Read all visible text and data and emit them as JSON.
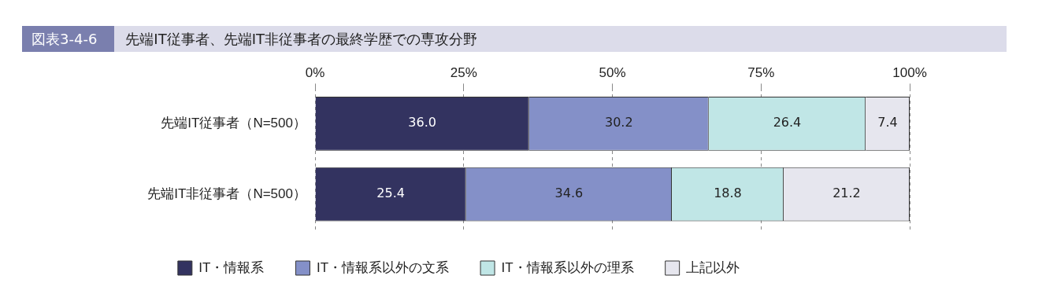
{
  "chart_data": {
    "type": "bar",
    "title": "図表3-4-6",
    "subtitle": "先端IT従事者、先端IT非従事者の最終学歴での専攻分野",
    "categories": [
      "先端IT従事者（N=500）",
      "先端IT非従事者（N=500）"
    ],
    "orientation": "horizontal",
    "stacked": true,
    "series": [
      {
        "name": "IT・情報系",
        "color": "#333360",
        "values": [
          36.0,
          25.4
        ],
        "value_labels": [
          "36.0",
          "25.4"
        ]
      },
      {
        "name": "IT・情報系以外の文系",
        "color": "#8490c8",
        "values": [
          30.2,
          34.6
        ],
        "value_labels": [
          "30.2",
          "34.6"
        ]
      },
      {
        "name": "IT・情報系以外の理系",
        "color": "#c0e6e6",
        "values": [
          26.4,
          18.8
        ],
        "value_labels": [
          "26.4",
          "18.8"
        ]
      },
      {
        "name": "上記以外",
        "color": "#e6e6ee",
        "values": [
          7.4,
          21.2
        ],
        "value_labels": [
          "7.4",
          "21.2"
        ]
      }
    ],
    "xlim": [
      0,
      100
    ],
    "xticks": [
      {
        "value": 0,
        "label": "0%"
      },
      {
        "value": 25,
        "label": "25%"
      },
      {
        "value": 50,
        "label": "50%"
      },
      {
        "value": 75,
        "label": "75%"
      },
      {
        "value": 100,
        "label": "100%"
      }
    ],
    "grid": "x",
    "legend": "bottom"
  }
}
